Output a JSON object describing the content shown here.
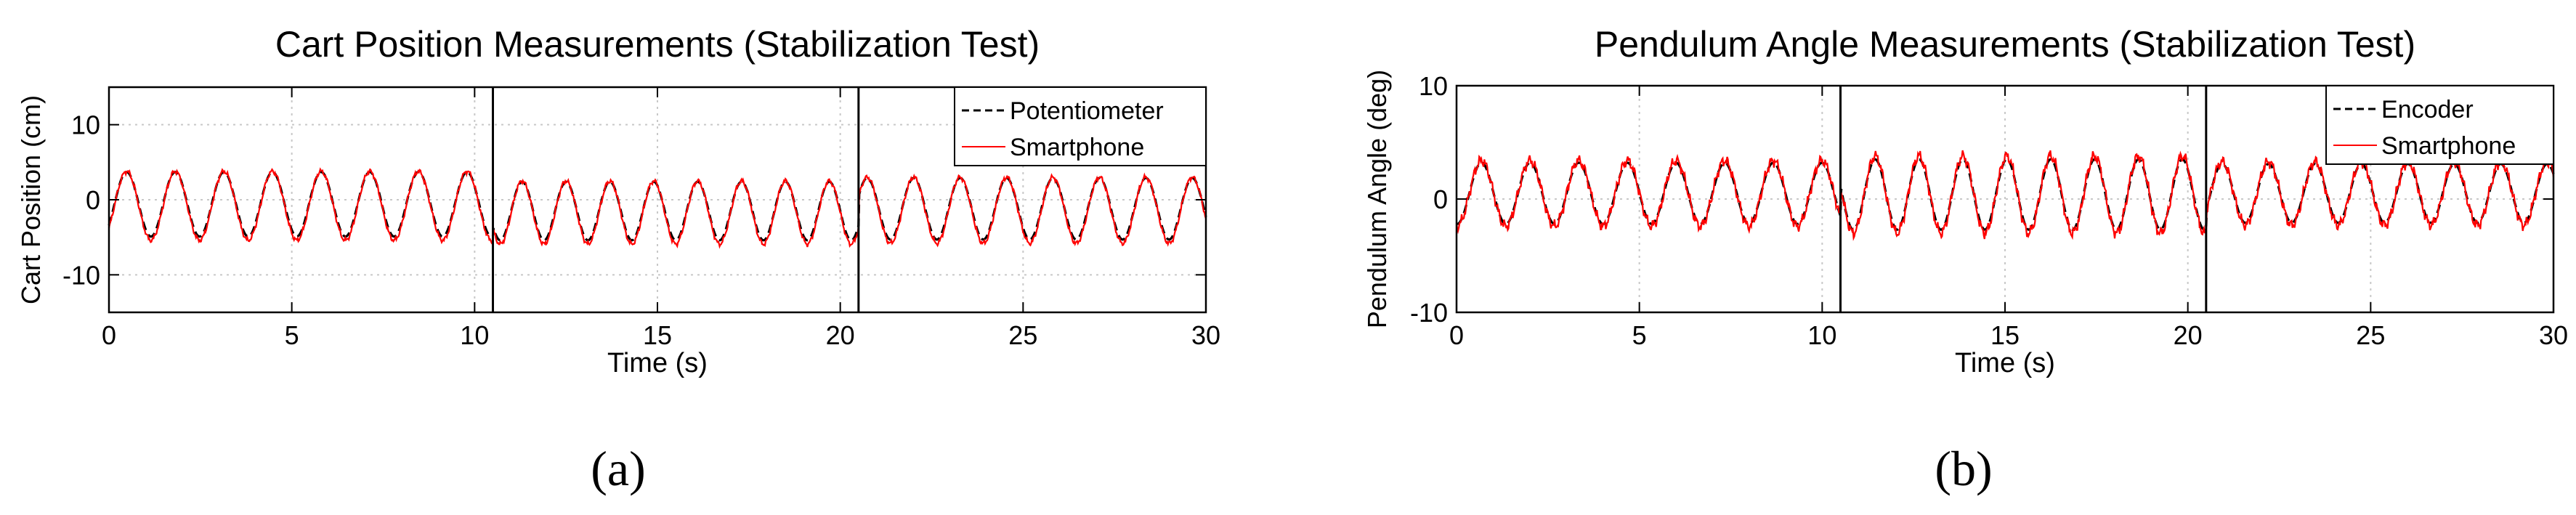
{
  "figure": {
    "panels": [
      {
        "caption": "(a)"
      },
      {
        "caption": "(b)"
      }
    ]
  },
  "colors": {
    "reference": "#000000",
    "smartphone": "#ff0000",
    "grid": "#c8c8c8",
    "axes": "#000000"
  },
  "chart_data": [
    {
      "type": "line",
      "title": "Cart Position Measurements (Stabilization Test)",
      "xlabel": "Time (s)",
      "ylabel": "Cart Position (cm)",
      "xlim": [
        0,
        30
      ],
      "ylim": [
        -15,
        15
      ],
      "xticks": [
        0,
        5,
        10,
        15,
        20,
        25,
        30
      ],
      "yticks": [
        -10,
        0,
        10
      ],
      "grid": true,
      "legend_position": "top-right",
      "vertical_markers": [
        10.5,
        20.5
      ],
      "series": [
        {
          "name": "Potentiometer",
          "style": "dashed",
          "color": "#000000",
          "segments": [
            {
              "t_start": 0,
              "t_end": 10.5,
              "period": 1.33,
              "amplitude": 4.3,
              "offset": -0.6,
              "phase": 0.15
            },
            {
              "t_start": 10.5,
              "t_end": 20.5,
              "period": 1.2,
              "amplitude": 3.9,
              "offset": -1.5,
              "phase": 0.2
            },
            {
              "t_start": 20.5,
              "t_end": 30,
              "period": 1.27,
              "amplitude": 4.1,
              "offset": -1.2,
              "phase": 0.1
            }
          ]
        },
        {
          "name": "Smartphone",
          "style": "solid",
          "color": "#ff0000",
          "segments": [
            {
              "t_start": 0,
              "t_end": 10.5,
              "period": 1.33,
              "amplitude": 4.6,
              "offset": -0.8,
              "phase": 0.15
            },
            {
              "t_start": 10.5,
              "t_end": 20.5,
              "period": 1.2,
              "amplitude": 4.2,
              "offset": -1.7,
              "phase": 0.2
            },
            {
              "t_start": 20.5,
              "t_end": 30,
              "period": 1.27,
              "amplitude": 4.4,
              "offset": -1.4,
              "phase": 0.1
            }
          ]
        }
      ]
    },
    {
      "type": "line",
      "title": "Pendulum Angle Measurements (Stabilization Test)",
      "xlabel": "Time (s)",
      "ylabel": "Pendulum Angle (deg)",
      "xlim": [
        0,
        30
      ],
      "ylim": [
        -10,
        10
      ],
      "xticks": [
        0,
        5,
        10,
        15,
        20,
        25,
        30
      ],
      "yticks": [
        -10,
        0,
        10
      ],
      "grid": true,
      "legend_position": "top-right",
      "vertical_markers": [
        10.5,
        20.5
      ],
      "series": [
        {
          "name": "Encoder",
          "style": "dashed",
          "color": "#000000",
          "segments": [
            {
              "t_start": 0,
              "t_end": 10.5,
              "period": 1.33,
              "amplitude": 2.7,
              "offset": 0.5,
              "phase": 0.35
            },
            {
              "t_start": 10.5,
              "t_end": 20.5,
              "period": 1.2,
              "amplitude": 3.1,
              "offset": 0.4,
              "phase": 0.35
            },
            {
              "t_start": 20.5,
              "t_end": 30,
              "period": 1.27,
              "amplitude": 2.6,
              "offset": 0.5,
              "phase": 0.3
            }
          ]
        },
        {
          "name": "Smartphone",
          "style": "solid",
          "color": "#ff0000",
          "segments": [
            {
              "t_start": 0,
              "t_end": 10.5,
              "period": 1.33,
              "amplitude": 2.9,
              "offset": 0.5,
              "phase": 0.35
            },
            {
              "t_start": 10.5,
              "t_end": 20.5,
              "period": 1.2,
              "amplitude": 3.4,
              "offset": 0.4,
              "phase": 0.35
            },
            {
              "t_start": 20.5,
              "t_end": 30,
              "period": 1.27,
              "amplitude": 2.8,
              "offset": 0.5,
              "phase": 0.3
            }
          ]
        }
      ]
    }
  ]
}
